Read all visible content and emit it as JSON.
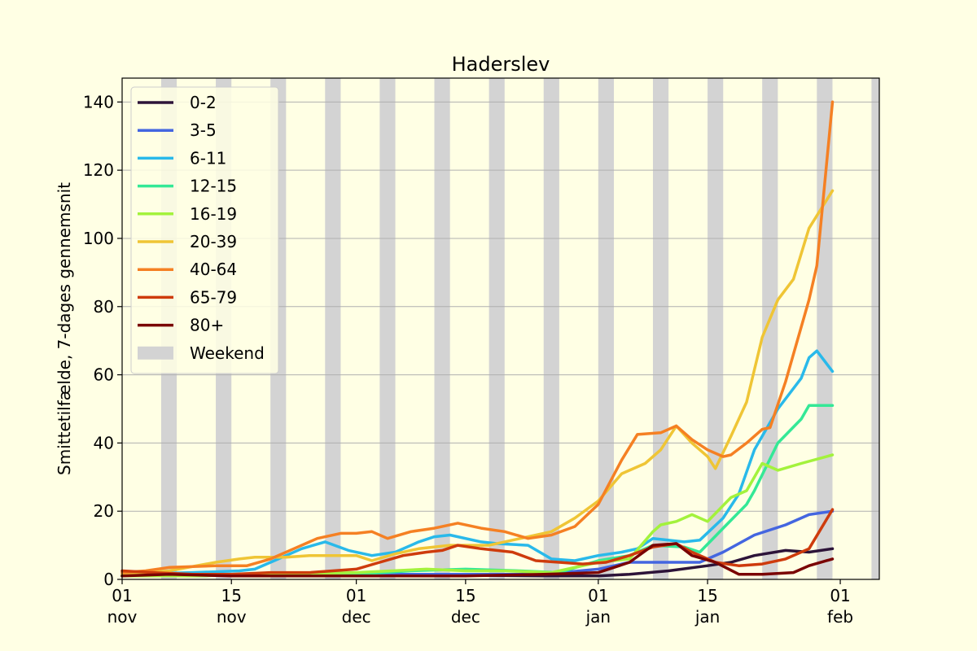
{
  "chart_data": {
    "type": "line",
    "title": "Haderslev",
    "xlabel": "",
    "ylabel": "Smittetilfælde, 7-dages gennemsnit",
    "x_range": [
      "2021-11-01",
      "2022-02-06"
    ],
    "ylim": [
      0,
      147
    ],
    "grid": "horizontal",
    "legend_position": "top-left",
    "weekend_label": "Weekend",
    "weekend_color": "#d3d3d3",
    "y_ticks": [
      0,
      20,
      40,
      60,
      80,
      100,
      120,
      140
    ],
    "x_ticks": [
      {
        "date": "2021-11-01",
        "day": "01",
        "month": "nov"
      },
      {
        "date": "2021-11-15",
        "day": "15",
        "month": "nov"
      },
      {
        "date": "2021-12-01",
        "day": "01",
        "month": "dec"
      },
      {
        "date": "2021-12-15",
        "day": "15",
        "month": "dec"
      },
      {
        "date": "2022-01-01",
        "day": "01",
        "month": "jan"
      },
      {
        "date": "2022-01-15",
        "day": "15",
        "month": "jan"
      },
      {
        "date": "2022-02-01",
        "day": "01",
        "month": "feb"
      }
    ],
    "weekends": [
      "2021-11-06",
      "2021-11-13",
      "2021-11-20",
      "2021-11-27",
      "2021-12-04",
      "2021-12-11",
      "2021-12-18",
      "2021-12-25",
      "2022-01-01",
      "2022-01-08",
      "2022-01-15",
      "2022-01-22",
      "2022-01-29",
      "2022-02-05"
    ],
    "series": [
      {
        "name": "0-2",
        "color": "#2d1439",
        "points": [
          [
            "2021-11-01",
            1
          ],
          [
            "2021-11-10",
            1
          ],
          [
            "2021-11-20",
            1.5
          ],
          [
            "2021-12-01",
            1.5
          ],
          [
            "2021-12-15",
            1.2
          ],
          [
            "2021-12-25",
            1
          ],
          [
            "2022-01-01",
            1
          ],
          [
            "2022-01-05",
            1.5
          ],
          [
            "2022-01-10",
            2.5
          ],
          [
            "2022-01-15",
            4
          ],
          [
            "2022-01-18",
            5
          ],
          [
            "2022-01-21",
            7
          ],
          [
            "2022-01-25",
            8.5
          ],
          [
            "2022-01-28",
            8
          ],
          [
            "2022-01-31",
            9
          ]
        ]
      },
      {
        "name": "3-5",
        "color": "#4466e0",
        "points": [
          [
            "2021-11-01",
            1
          ],
          [
            "2021-11-10",
            1.5
          ],
          [
            "2021-11-20",
            1.5
          ],
          [
            "2021-12-01",
            1.5
          ],
          [
            "2021-12-15",
            1.5
          ],
          [
            "2021-12-25",
            1.5
          ],
          [
            "2022-01-01",
            3
          ],
          [
            "2022-01-05",
            5
          ],
          [
            "2022-01-10",
            5
          ],
          [
            "2022-01-14",
            5
          ],
          [
            "2022-01-17",
            8
          ],
          [
            "2022-01-21",
            13
          ],
          [
            "2022-01-25",
            16
          ],
          [
            "2022-01-28",
            19
          ],
          [
            "2022-01-31",
            20
          ]
        ]
      },
      {
        "name": "6-11",
        "color": "#29b9ea",
        "points": [
          [
            "2021-11-01",
            1.5
          ],
          [
            "2021-11-10",
            2
          ],
          [
            "2021-11-16",
            2.5
          ],
          [
            "2021-11-18",
            3
          ],
          [
            "2021-11-21",
            6
          ],
          [
            "2021-11-24",
            9
          ],
          [
            "2021-11-27",
            11
          ],
          [
            "2021-11-30",
            8.5
          ],
          [
            "2021-12-03",
            7
          ],
          [
            "2021-12-06",
            8
          ],
          [
            "2021-12-09",
            11
          ],
          [
            "2021-12-11",
            12.5
          ],
          [
            "2021-12-13",
            13
          ],
          [
            "2021-12-17",
            11
          ],
          [
            "2021-12-19",
            10.5
          ],
          [
            "2021-12-23",
            10
          ],
          [
            "2021-12-26",
            6
          ],
          [
            "2021-12-29",
            5.5
          ],
          [
            "2022-01-01",
            7
          ],
          [
            "2022-01-04",
            8
          ],
          [
            "2022-01-06",
            9
          ],
          [
            "2022-01-08",
            12
          ],
          [
            "2022-01-12",
            11
          ],
          [
            "2022-01-14",
            11.5
          ],
          [
            "2022-01-17",
            18
          ],
          [
            "2022-01-19",
            25
          ],
          [
            "2022-01-21",
            38
          ],
          [
            "2022-01-24",
            50
          ],
          [
            "2022-01-27",
            59
          ],
          [
            "2022-01-28",
            65
          ],
          [
            "2022-01-29",
            67
          ],
          [
            "2022-01-31",
            61
          ]
        ]
      },
      {
        "name": "12-15",
        "color": "#34e896",
        "points": [
          [
            "2021-11-01",
            1
          ],
          [
            "2021-11-10",
            1
          ],
          [
            "2021-11-20",
            1.5
          ],
          [
            "2021-12-01",
            1.5
          ],
          [
            "2021-12-08",
            2.5
          ],
          [
            "2021-12-15",
            3
          ],
          [
            "2021-12-22",
            2.5
          ],
          [
            "2021-12-27",
            2
          ],
          [
            "2022-01-01",
            5.5
          ],
          [
            "2022-01-05",
            7
          ],
          [
            "2022-01-08",
            10
          ],
          [
            "2022-01-12",
            9.5
          ],
          [
            "2022-01-14",
            8
          ],
          [
            "2022-01-17",
            15
          ],
          [
            "2022-01-20",
            22
          ],
          [
            "2022-01-21",
            26
          ],
          [
            "2022-01-24",
            40
          ],
          [
            "2022-01-27",
            47
          ],
          [
            "2022-01-28",
            51
          ],
          [
            "2022-01-31",
            51
          ]
        ]
      },
      {
        "name": "16-19",
        "color": "#a3f23c",
        "points": [
          [
            "2021-11-01",
            1
          ],
          [
            "2021-11-10",
            1
          ],
          [
            "2021-11-20",
            1.5
          ],
          [
            "2021-12-01",
            2
          ],
          [
            "2021-12-10",
            3
          ],
          [
            "2021-12-15",
            2.5
          ],
          [
            "2021-12-20",
            2.5
          ],
          [
            "2021-12-26",
            2
          ],
          [
            "2022-01-01",
            5
          ],
          [
            "2022-01-05",
            6
          ],
          [
            "2022-01-08",
            14
          ],
          [
            "2022-01-09",
            16
          ],
          [
            "2022-01-11",
            17
          ],
          [
            "2022-01-13",
            19
          ],
          [
            "2022-01-15",
            17
          ],
          [
            "2022-01-18",
            24
          ],
          [
            "2022-01-20",
            26
          ],
          [
            "2022-01-22",
            34
          ],
          [
            "2022-01-24",
            32
          ],
          [
            "2022-01-27",
            34
          ],
          [
            "2022-01-31",
            36.5
          ]
        ]
      },
      {
        "name": "20-39",
        "color": "#efc535",
        "points": [
          [
            "2021-11-01",
            1.5
          ],
          [
            "2021-11-07",
            2.5
          ],
          [
            "2021-11-13",
            5
          ],
          [
            "2021-11-16",
            6
          ],
          [
            "2021-11-18",
            6.5
          ],
          [
            "2021-11-22",
            6.5
          ],
          [
            "2021-11-25",
            7
          ],
          [
            "2021-11-29",
            7
          ],
          [
            "2021-12-01",
            7
          ],
          [
            "2021-12-03",
            5.5
          ],
          [
            "2021-12-06",
            7.5
          ],
          [
            "2021-12-09",
            9
          ],
          [
            "2021-12-13",
            10
          ],
          [
            "2021-12-18",
            10
          ],
          [
            "2021-12-22",
            12
          ],
          [
            "2021-12-26",
            14
          ],
          [
            "2021-12-29",
            18
          ],
          [
            "2022-01-01",
            23
          ],
          [
            "2022-01-04",
            31
          ],
          [
            "2022-01-07",
            34
          ],
          [
            "2022-01-09",
            38
          ],
          [
            "2022-01-11",
            45
          ],
          [
            "2022-01-13",
            40
          ],
          [
            "2022-01-15",
            36
          ],
          [
            "2022-01-16",
            32.5
          ],
          [
            "2022-01-18",
            42
          ],
          [
            "2022-01-20",
            52
          ],
          [
            "2022-01-22",
            71
          ],
          [
            "2022-01-24",
            82
          ],
          [
            "2022-01-26",
            88
          ],
          [
            "2022-01-28",
            103
          ],
          [
            "2022-01-31",
            114
          ]
        ]
      },
      {
        "name": "40-64",
        "color": "#f58023",
        "points": [
          [
            "2021-11-01",
            2
          ],
          [
            "2021-11-04",
            2.5
          ],
          [
            "2021-11-07",
            3.5
          ],
          [
            "2021-11-13",
            4
          ],
          [
            "2021-11-17",
            4
          ],
          [
            "2021-11-20",
            6
          ],
          [
            "2021-11-23",
            9
          ],
          [
            "2021-11-26",
            12
          ],
          [
            "2021-11-29",
            13.5
          ],
          [
            "2021-12-01",
            13.5
          ],
          [
            "2021-12-03",
            14
          ],
          [
            "2021-12-05",
            12
          ],
          [
            "2021-12-08",
            14
          ],
          [
            "2021-12-11",
            15
          ],
          [
            "2021-12-14",
            16.5
          ],
          [
            "2021-12-17",
            15
          ],
          [
            "2021-12-20",
            14
          ],
          [
            "2021-12-23",
            12
          ],
          [
            "2021-12-26",
            13
          ],
          [
            "2021-12-29",
            15.5
          ],
          [
            "2022-01-01",
            22
          ],
          [
            "2022-01-04",
            35
          ],
          [
            "2022-01-06",
            42.5
          ],
          [
            "2022-01-09",
            43
          ],
          [
            "2022-01-11",
            45
          ],
          [
            "2022-01-13",
            41
          ],
          [
            "2022-01-15",
            38
          ],
          [
            "2022-01-17",
            36
          ],
          [
            "2022-01-18",
            36.5
          ],
          [
            "2022-01-20",
            40
          ],
          [
            "2022-01-22",
            44
          ],
          [
            "2022-01-23",
            44.5
          ],
          [
            "2022-01-25",
            58
          ],
          [
            "2022-01-26",
            66
          ],
          [
            "2022-01-28",
            82
          ],
          [
            "2022-01-29",
            92
          ],
          [
            "2022-01-31",
            140
          ]
        ]
      },
      {
        "name": "65-79",
        "color": "#ce3b0c",
        "points": [
          [
            "2021-11-01",
            2.5
          ],
          [
            "2021-11-05",
            2
          ],
          [
            "2021-11-10",
            1.5
          ],
          [
            "2021-11-15",
            1.5
          ],
          [
            "2021-11-20",
            2
          ],
          [
            "2021-11-25",
            2
          ],
          [
            "2021-12-01",
            3
          ],
          [
            "2021-12-04",
            5
          ],
          [
            "2021-12-07",
            7
          ],
          [
            "2021-12-10",
            8
          ],
          [
            "2021-12-12",
            8.5
          ],
          [
            "2021-12-14",
            10
          ],
          [
            "2021-12-17",
            9
          ],
          [
            "2021-12-21",
            8
          ],
          [
            "2021-12-24",
            5.5
          ],
          [
            "2021-12-27",
            5
          ],
          [
            "2021-12-30",
            4.5
          ],
          [
            "2022-01-02",
            5
          ],
          [
            "2022-01-05",
            7
          ],
          [
            "2022-01-08",
            9.5
          ],
          [
            "2022-01-11",
            10.5
          ],
          [
            "2022-01-13",
            8
          ],
          [
            "2022-01-16",
            5
          ],
          [
            "2022-01-19",
            4
          ],
          [
            "2022-01-22",
            4.5
          ],
          [
            "2022-01-25",
            6
          ],
          [
            "2022-01-28",
            9
          ],
          [
            "2022-01-31",
            20.5
          ]
        ]
      },
      {
        "name": "80+",
        "color": "#7a0403",
        "points": [
          [
            "2021-11-01",
            1
          ],
          [
            "2021-11-07",
            1.5
          ],
          [
            "2021-11-15",
            1
          ],
          [
            "2021-11-25",
            1
          ],
          [
            "2021-12-05",
            1
          ],
          [
            "2021-12-15",
            1
          ],
          [
            "2021-12-25",
            1.5
          ],
          [
            "2022-01-01",
            2
          ],
          [
            "2022-01-05",
            5
          ],
          [
            "2022-01-08",
            10
          ],
          [
            "2022-01-11",
            10.5
          ],
          [
            "2022-01-13",
            7
          ],
          [
            "2022-01-16",
            5
          ],
          [
            "2022-01-19",
            1.5
          ],
          [
            "2022-01-22",
            1.5
          ],
          [
            "2022-01-26",
            2
          ],
          [
            "2022-01-28",
            4
          ],
          [
            "2022-01-31",
            6
          ]
        ]
      }
    ]
  }
}
